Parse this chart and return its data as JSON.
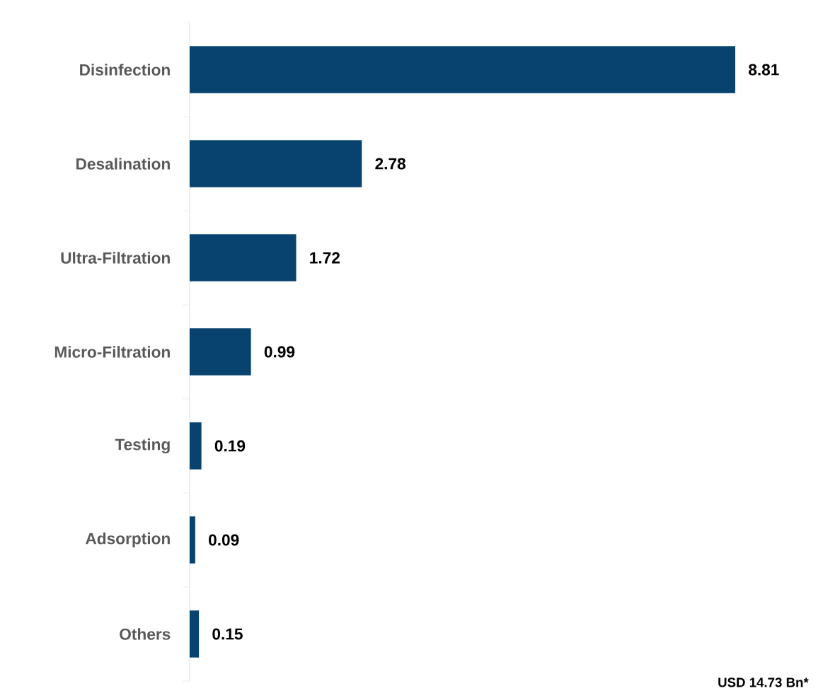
{
  "chart_data": {
    "type": "bar",
    "orientation": "horizontal",
    "categories": [
      "Disinfection",
      "Desalination",
      "Ultra-Filtration",
      "Micro-Filtration",
      "Testing",
      "Adsorption",
      "Others"
    ],
    "values": [
      8.81,
      2.78,
      1.72,
      0.99,
      0.19,
      0.09,
      0.15
    ],
    "value_labels": [
      "8.81",
      "2.78",
      "1.72",
      "0.99",
      "0.19",
      "0.09",
      "0.15"
    ],
    "color": "#08436f",
    "annotations": [
      "USD 14.73 Bn*"
    ]
  }
}
